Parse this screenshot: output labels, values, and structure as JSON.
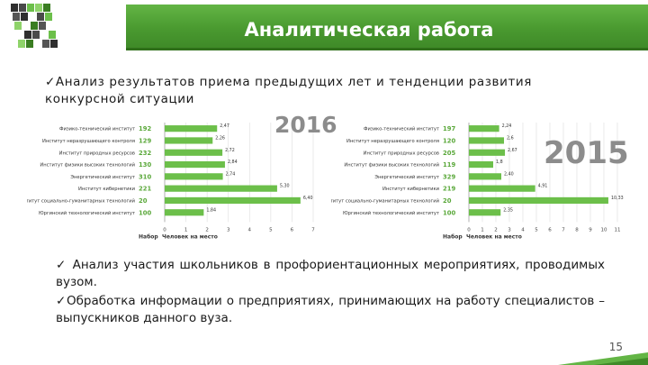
{
  "header": {
    "title": "Аналитическая работа"
  },
  "paragraphs": {
    "p1": "✓Анализ результатов приема предыдущих лет и тенденции развития конкурсной ситуации",
    "p2": "✓ Анализ участия школьников в профориентационных мероприятиях, проводимых вузом.",
    "p3": "✓Обработка информации о предприятиях, принимающих на работу специалистов – выпускников данного вуза."
  },
  "page_number": "15",
  "colors": {
    "accent": "#63b545",
    "bar": "#6cbf4a",
    "header_dark": "#3f8a28"
  },
  "chart_data": [
    {
      "type": "bar",
      "orientation": "horizontal",
      "year_label": "2016",
      "categories": [
        "Физико-технический институт",
        "Институт неразрушающего контроля",
        "Институт природных ресурсов",
        "Институт физики высоких технологий",
        "Энергетический институт",
        "Институт кибернетики",
        "Институт социально-гуманитарных технологий",
        "Юргинский технологический институт"
      ],
      "nabor": [
        "192",
        "129",
        "232",
        "130",
        "310",
        "221",
        "20",
        "100"
      ],
      "values": [
        2.47,
        2.26,
        2.72,
        2.84,
        2.74,
        5.3,
        6.4,
        1.84
      ],
      "value_labels": [
        "2,47",
        "2,26",
        "2,72",
        "2,84",
        "2,74",
        "5,30",
        "6,40",
        "1,84"
      ],
      "xticks": [
        "0",
        "1",
        "2",
        "3",
        "4",
        "5",
        "6",
        "7"
      ],
      "xlim": [
        0,
        7
      ],
      "xlabel_nabor": "Набор",
      "xlabel": "Человек на место"
    },
    {
      "type": "bar",
      "orientation": "horizontal",
      "year_label": "2015",
      "categories": [
        "Физико-технический институт",
        "Институт неразрушающего контроля",
        "Институт природных ресурсов",
        "Институт физики высоких технологий",
        "Энергетический институт",
        "Институт кибернетики",
        "Институт социально-гуманитарных технологий",
        "Юргинский технологический институт"
      ],
      "nabor": [
        "197",
        "120",
        "205",
        "119",
        "329",
        "219",
        "20",
        "100"
      ],
      "values": [
        2.24,
        2.6,
        2.67,
        1.8,
        2.4,
        4.91,
        10.33,
        2.35
      ],
      "value_labels": [
        "2,24",
        "2,6",
        "2,67",
        "1,8",
        "2,40",
        "4,91",
        "10,33",
        "2,35"
      ],
      "xticks": [
        "0",
        "1",
        "2",
        "3",
        "4",
        "5",
        "6",
        "7",
        "8",
        "9",
        "10",
        "11"
      ],
      "xlim": [
        0,
        11
      ],
      "xlabel_nabor": "Набор",
      "xlabel": "Человек на место"
    }
  ]
}
